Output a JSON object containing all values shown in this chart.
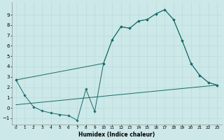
{
  "bg_color": "#cce8e8",
  "grid_color": "#b8d8d8",
  "line_color": "#1a6b6b",
  "xlim": [
    -0.5,
    23.5
  ],
  "ylim": [
    -1.6,
    10.2
  ],
  "xticks": [
    0,
    1,
    2,
    3,
    4,
    5,
    6,
    7,
    8,
    9,
    10,
    11,
    12,
    13,
    14,
    15,
    16,
    17,
    18,
    19,
    20,
    21,
    22,
    23
  ],
  "yticks": [
    -1,
    0,
    1,
    2,
    3,
    4,
    5,
    6,
    7,
    8,
    9
  ],
  "xlabel": "Humidex (Indice chaleur)",
  "series": [
    {
      "x": [
        0,
        1,
        2,
        3,
        4,
        5,
        6,
        7,
        8,
        9,
        10,
        11,
        12,
        13,
        14,
        15,
        16,
        17,
        18,
        19,
        20,
        21,
        22,
        23
      ],
      "y": [
        2.7,
        1.2,
        0.1,
        -0.3,
        -0.5,
        -0.65,
        -0.75,
        -1.2,
        1.8,
        -0.35,
        4.3,
        6.6,
        7.85,
        7.7,
        8.4,
        8.55,
        9.1,
        9.5,
        8.55,
        6.5,
        4.3,
        3.15,
        2.45,
        2.2
      ],
      "marker": true
    },
    {
      "x": [
        0,
        23
      ],
      "y": [
        0.3,
        2.2
      ],
      "marker": false
    },
    {
      "x": [
        0,
        10,
        11,
        12,
        13,
        14,
        15,
        16,
        17,
        18,
        19,
        20,
        21,
        22,
        23
      ],
      "y": [
        2.7,
        4.3,
        6.6,
        7.85,
        7.7,
        8.4,
        8.55,
        9.1,
        9.5,
        8.55,
        6.5,
        4.3,
        3.15,
        2.45,
        2.2
      ],
      "marker": true
    }
  ]
}
